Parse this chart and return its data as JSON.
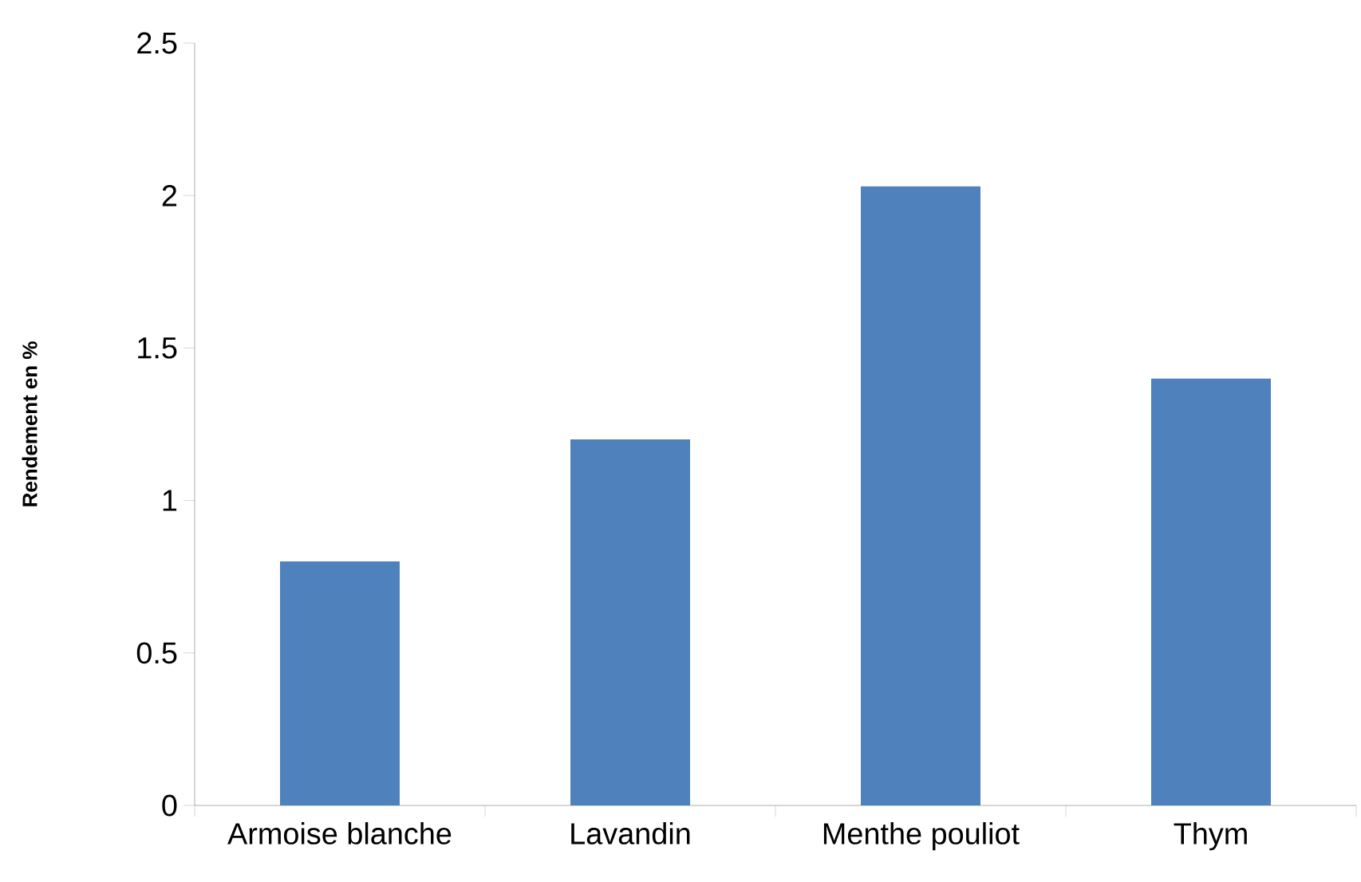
{
  "chart_data": {
    "type": "bar",
    "ylabel": "Rendement en %",
    "categories": [
      "Armoise blanche",
      "Lavandin",
      "Menthe pouliot",
      "Thym"
    ],
    "values": [
      0.8,
      1.2,
      2.03,
      1.4
    ],
    "color": "#4f81bd",
    "ylim": [
      0,
      2.5
    ],
    "yticks": [
      0,
      0.5,
      1,
      1.5,
      2,
      2.5
    ],
    "grid": false
  }
}
